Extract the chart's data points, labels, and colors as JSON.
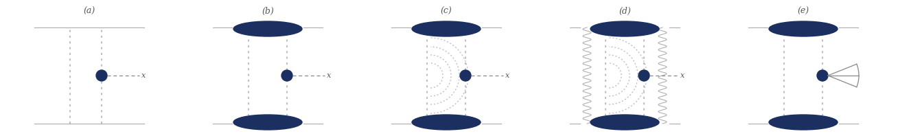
{
  "background_color": "#ffffff",
  "labels": [
    "(a)",
    "(b)",
    "(c)",
    "(d)",
    "(e)"
  ],
  "label_fontsize": 9,
  "dark_blue": "#1b3060",
  "chain_color": "#c0c0c0",
  "wavy_color": "#b0b0b0",
  "arc_color": "#c0c0c0",
  "dashed_color": "#888888",
  "line_color": "#aaaaaa",
  "fig_width": 13.08,
  "fig_height": 1.98,
  "dpi": 100
}
